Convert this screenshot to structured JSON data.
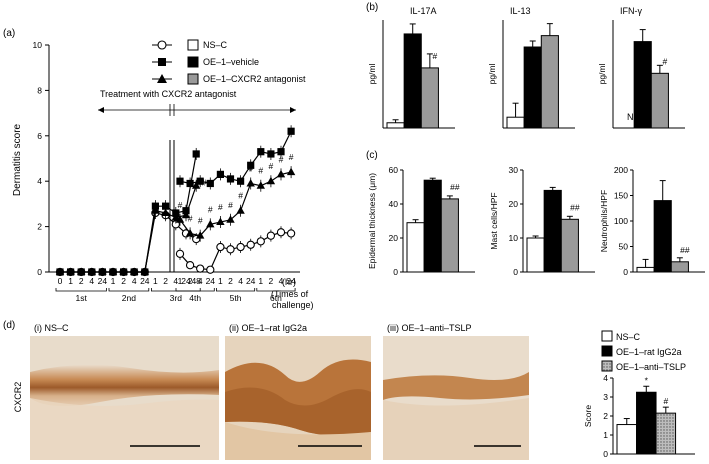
{
  "panel_labels": {
    "a": "(a)",
    "b": "(b)",
    "c": "(c)",
    "d": "(d)"
  },
  "chart_data": [
    {
      "id": "a",
      "type": "line",
      "ylabel": "Dermatitis score",
      "ylim": [
        0,
        10
      ],
      "yticks": [
        "0",
        "2",
        "4",
        "6",
        "8",
        "10"
      ],
      "xunit": "(hr)",
      "xunit2": "(Times of challenge)",
      "xunit2_line1": "(Times of",
      "xunit2_line2": "challenge)",
      "x_hours": [
        "0",
        "1",
        "2",
        "4",
        "24",
        "1",
        "2",
        "4",
        "24",
        "1",
        "2",
        "4",
        "24",
        "48",
        "1",
        "2",
        "4",
        "24",
        "1",
        "2",
        "4",
        "24",
        "1",
        "2",
        "4",
        "24"
      ],
      "challenge_labels": [
        "1st",
        "2nd",
        "3rd",
        "4th",
        "5th",
        "6th"
      ],
      "treatment_label": "Treatment with CXCR2 antagonist",
      "legend": [
        "NS–C",
        "OE–1–vehicle",
        "OE–1–CXCR2 antagonist"
      ],
      "series": [
        {
          "name": "NS–C",
          "marker": "open-circle",
          "values": [
            0,
            0,
            0,
            0,
            0,
            0,
            0,
            0,
            0,
            2.6,
            2.5,
            2.1,
            1.7,
            1.45,
            0.8,
            0.3,
            0.15,
            0.1,
            1.1,
            1.0,
            1.1,
            1.2,
            1.35,
            1.6,
            1.75,
            1.7
          ]
        },
        {
          "name": "OE–1–vehicle",
          "marker": "filled-square",
          "values": [
            0,
            0,
            0,
            0,
            0,
            0,
            0,
            0,
            0,
            2.9,
            2.9,
            2.6,
            2.7,
            5.2,
            4.0,
            3.9,
            4.0,
            3.9,
            4.3,
            4.1,
            4.0,
            4.7,
            5.3,
            5.2,
            5.3,
            6.2
          ]
        },
        {
          "name": "OE–1–CXCR2 antagonist",
          "marker": "filled-triangle",
          "values": [
            0,
            0,
            0,
            0,
            0,
            0,
            0,
            0,
            0,
            2.7,
            2.6,
            2.4,
            2.5,
            3.8,
            2.3,
            1.7,
            1.6,
            2.1,
            2.2,
            2.3,
            2.7,
            3.9,
            3.8,
            4.0,
            4.3,
            4.4
          ]
        }
      ],
      "annotations": [
        "#"
      ]
    },
    {
      "id": "b-il17a",
      "type": "bar",
      "title": "IL-17A",
      "ylabel": "pg/ml",
      "categories": [
        "NS–C",
        "OE–1–vehicle",
        "OE–1–CXCR2 antagonist"
      ],
      "values": [
        30,
        540,
        345
      ],
      "ylim": [
        0,
        620
      ],
      "annotation": "#"
    },
    {
      "id": "b-il13",
      "type": "bar",
      "title": "IL-13",
      "ylabel": "pg/ml",
      "categories": [
        "NS–C",
        "OE–1–vehicle",
        "OE–1–CXCR2 antagonist"
      ],
      "values": [
        38,
        285,
        325
      ],
      "ylim": [
        0,
        380
      ]
    },
    {
      "id": "b-ifng",
      "type": "bar",
      "title": "IFN-γ",
      "ylabel": "pg/ml",
      "categories": [
        "NS–C",
        "OE–1–vehicle",
        "OE–1–CXCR2 antagonist"
      ],
      "values": [
        0,
        640,
        405
      ],
      "ylim": [
        0,
        800
      ],
      "annotation": "#",
      "nd_label": "ND"
    },
    {
      "id": "c-epi",
      "type": "bar",
      "ylabel": "Epidermal thickness (μm)",
      "categories": [
        "NS–C",
        "OE–1–vehicle",
        "OE–1–CXCR2 antagonist"
      ],
      "values": [
        29,
        54,
        43
      ],
      "ylim": [
        0,
        60
      ],
      "yticks": [
        "0",
        "20",
        "40",
        "60"
      ],
      "annotation": "##"
    },
    {
      "id": "c-mast",
      "type": "bar",
      "ylabel": "Mast cells/HPF",
      "categories": [
        "NS–C",
        "OE–1–vehicle",
        "OE–1–CXCR2 antagonist"
      ],
      "values": [
        10,
        24,
        15.5
      ],
      "ylim": [
        0,
        30
      ],
      "yticks": [
        "0",
        "10",
        "20",
        "30"
      ],
      "annotation": "##"
    },
    {
      "id": "c-neut",
      "type": "bar",
      "ylabel": "Neutrophils/HPF",
      "categories": [
        "NS–C",
        "OE–1–vehicle",
        "OE–1–CXCR2 antagonist"
      ],
      "values": [
        9,
        140,
        20
      ],
      "ylim": [
        0,
        200
      ],
      "yticks": [
        "0",
        "50",
        "100",
        "150",
        "200"
      ],
      "annotation": "##"
    },
    {
      "id": "d-score",
      "type": "bar",
      "ylabel": "Score",
      "legend": [
        "NS–C",
        "OE–1–rat IgG2a",
        "OE–1–anti–TSLP"
      ],
      "categories": [
        "NS–C",
        "OE–1–rat IgG2a",
        "OE–1–anti–TSLP"
      ],
      "values": [
        1.55,
        3.25,
        2.15
      ],
      "ylim": [
        0,
        4
      ],
      "yticks": [
        "0",
        "1",
        "2",
        "3",
        "4"
      ],
      "annotations": [
        "*",
        "#"
      ]
    }
  ],
  "micrographs": {
    "ylabel": "CXCR2",
    "panels": [
      "(i) NS–C",
      "(ii) OE–1–rat IgG2a",
      "(iii) OE–1–anti–TSLP"
    ]
  },
  "colors": {
    "ns": "#ffffff",
    "vehicle": "#000000",
    "antagonist": "#9a9a9a",
    "stain": "#b0692f"
  }
}
